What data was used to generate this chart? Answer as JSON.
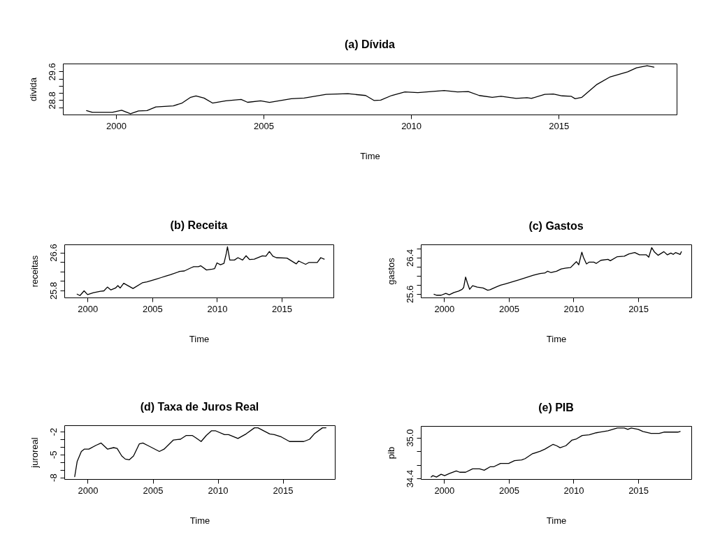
{
  "chart_data": [
    {
      "type": "line",
      "title": "(a) Dívida",
      "xlabel": "Time",
      "ylabel": "divida",
      "color": "#000000",
      "xlim": [
        1998.2,
        2019.0
      ],
      "xticks": [
        2000,
        2005,
        2010,
        2015
      ],
      "ylim": [
        28.4,
        29.82
      ],
      "yticks": [
        {
          "value": 28.6,
          "label": null
        },
        28.8,
        {
          "value": 29.0,
          "label": null
        },
        {
          "value": 29.2,
          "label": null
        },
        {
          "value": 29.4,
          "label": null
        },
        29.6
      ],
      "x": [
        1999.0,
        1999.2,
        1999.87,
        2000.19,
        2000.49,
        2000.76,
        2001.05,
        2001.35,
        2001.94,
        2002.24,
        2002.53,
        2002.71,
        2002.98,
        2003.27,
        2003.72,
        2004.24,
        2004.46,
        2004.9,
        2005.2,
        2005.94,
        2006.38,
        2007.12,
        2007.86,
        2008.46,
        2008.75,
        2008.97,
        2009.34,
        2009.79,
        2010.23,
        2010.53,
        2011.12,
        2011.57,
        2011.94,
        2012.31,
        2012.75,
        2013.05,
        2013.56,
        2013.93,
        2014.08,
        2014.53,
        2014.82,
        2015.12,
        2015.42,
        2015.56,
        2015.79,
        2016.3,
        2016.75,
        2017.34,
        2017.64,
        2018.0,
        2018.23
      ],
      "values": [
        28.51,
        28.46,
        28.46,
        28.52,
        28.42,
        28.5,
        28.51,
        28.61,
        28.64,
        28.72,
        28.88,
        28.92,
        28.86,
        28.72,
        28.78,
        28.82,
        28.74,
        28.78,
        28.74,
        28.84,
        28.86,
        28.96,
        28.98,
        28.93,
        28.79,
        28.8,
        28.93,
        29.03,
        29.01,
        29.03,
        29.07,
        29.03,
        29.04,
        28.93,
        28.88,
        28.91,
        28.85,
        28.87,
        28.85,
        28.96,
        28.97,
        28.92,
        28.91,
        28.84,
        28.88,
        29.24,
        29.45,
        29.59,
        29.7,
        29.76,
        29.72
      ]
    },
    {
      "type": "line",
      "title": "(b) Receita",
      "xlabel": "Time",
      "ylabel": "receitas",
      "color": "#000000",
      "xlim": [
        1998.2,
        2019.0
      ],
      "xticks": [
        2000,
        2005,
        2010,
        2015
      ],
      "ylim": [
        25.65,
        26.77
      ],
      "yticks": [
        25.8,
        {
          "value": 26.0,
          "label": null
        },
        {
          "value": 26.2,
          "label": null
        },
        {
          "value": 26.4,
          "label": null
        },
        26.6
      ],
      "x": [
        1999.19,
        1999.41,
        1999.73,
        2000.0,
        2000.45,
        2000.99,
        2001.26,
        2001.53,
        2001.8,
        2002.16,
        2002.34,
        2002.52,
        2002.79,
        2003.51,
        2004.23,
        2004.59,
        2005.32,
        2005.68,
        2006.04,
        2006.4,
        2007.12,
        2007.48,
        2008.02,
        2008.2,
        2008.56,
        2008.74,
        2009.19,
        2009.64,
        2009.82,
        2010.0,
        2010.27,
        2010.54,
        2010.72,
        2010.81,
        2010.99,
        2011.35,
        2011.62,
        2011.98,
        2012.25,
        2012.52,
        2012.88,
        2013.24,
        2013.51,
        2013.78,
        2014.05,
        2014.32,
        2014.59,
        2015.41,
        2016.13,
        2016.31,
        2016.85,
        2017.12,
        2017.75,
        2018.02,
        2018.29
      ],
      "values": [
        25.72,
        25.69,
        25.79,
        25.71,
        25.75,
        25.78,
        25.79,
        25.87,
        25.81,
        25.85,
        25.9,
        25.85,
        25.95,
        25.84,
        25.96,
        25.98,
        26.04,
        26.07,
        26.1,
        26.13,
        26.2,
        26.21,
        26.28,
        26.3,
        26.3,
        26.32,
        26.23,
        26.25,
        26.26,
        26.38,
        26.34,
        26.37,
        26.58,
        26.72,
        26.44,
        26.44,
        26.49,
        26.44,
        26.53,
        26.45,
        26.46,
        26.5,
        26.53,
        26.52,
        26.62,
        26.52,
        26.49,
        26.48,
        26.36,
        26.42,
        26.35,
        26.39,
        26.39,
        26.49,
        26.46
      ]
    },
    {
      "type": "line",
      "title": "(c) Gastos",
      "xlabel": "Time",
      "ylabel": "gastos",
      "color": "#000000",
      "xlim": [
        1998.2,
        2019.1
      ],
      "xticks": [
        2000,
        2005,
        2010,
        2015
      ],
      "ylim": [
        25.52,
        26.69
      ],
      "yticks": [
        25.6,
        {
          "value": 25.8,
          "label": null
        },
        {
          "value": 26.0,
          "label": null
        },
        {
          "value": 26.2,
          "label": null
        },
        26.4,
        {
          "value": 26.6,
          "label": null
        }
      ],
      "x": [
        1999.22,
        1999.41,
        1999.77,
        2000.13,
        2000.4,
        2000.76,
        2001.12,
        2001.39,
        2001.51,
        2001.66,
        2001.8,
        2001.97,
        2002.2,
        2002.56,
        2003.01,
        2003.37,
        2003.55,
        2004.0,
        2004.36,
        2004.72,
        2005.08,
        2005.44,
        2005.8,
        2006.35,
        2006.89,
        2007.43,
        2007.79,
        2008.0,
        2008.24,
        2008.69,
        2009.05,
        2009.41,
        2009.77,
        2010.04,
        2010.22,
        2010.4,
        2010.64,
        2010.76,
        2011.0,
        2011.21,
        2011.57,
        2011.75,
        2012.11,
        2012.66,
        2012.84,
        2013.38,
        2013.92,
        2014.28,
        2014.73,
        2015.09,
        2015.63,
        2015.81,
        2016.04,
        2016.26,
        2016.53,
        2016.98,
        2017.25,
        2017.52,
        2017.7,
        2017.88,
        2018.24,
        2018.33
      ],
      "values": [
        25.59,
        25.57,
        25.57,
        25.61,
        25.58,
        25.63,
        25.66,
        25.7,
        25.74,
        25.97,
        25.84,
        25.7,
        25.78,
        25.75,
        25.73,
        25.68,
        25.69,
        25.75,
        25.79,
        25.82,
        25.85,
        25.88,
        25.91,
        25.96,
        26.01,
        26.05,
        26.06,
        26.1,
        26.07,
        26.1,
        26.15,
        26.17,
        26.18,
        26.26,
        26.31,
        26.24,
        26.52,
        26.41,
        26.26,
        26.3,
        26.3,
        26.27,
        26.34,
        26.36,
        26.33,
        26.42,
        26.43,
        26.48,
        26.51,
        26.46,
        26.46,
        26.41,
        26.62,
        26.52,
        26.45,
        26.53,
        26.46,
        26.5,
        26.47,
        26.51,
        26.47,
        26.53
      ]
    },
    {
      "type": "line",
      "title": "(d) Taxa de Juros Real",
      "xlabel": "Time",
      "ylabel": "juroreal",
      "color": "#000000",
      "xlim": [
        1998.2,
        2019.0
      ],
      "xticks": [
        2000,
        2005,
        2010,
        2015
      ],
      "ylim": [
        -8.22,
        -1.17
      ],
      "yticks": [
        -8,
        {
          "value": -7,
          "label": null
        },
        {
          "value": -6,
          "label": null
        },
        -5,
        {
          "value": -4,
          "label": null
        },
        {
          "value": -3,
          "label": null
        },
        -2
      ],
      "x": [
        1999.0,
        1999.19,
        1999.51,
        1999.73,
        2000.09,
        2000.63,
        2001.03,
        2001.53,
        2001.99,
        2002.26,
        2002.62,
        2002.89,
        2003.19,
        2003.52,
        2003.97,
        2004.24,
        2004.6,
        2005.51,
        2005.87,
        2006.59,
        2007.13,
        2007.58,
        2008.03,
        2008.3,
        2008.72,
        2009.12,
        2009.51,
        2009.84,
        2010.52,
        2010.83,
        2011.55,
        2012.18,
        2012.82,
        2013.09,
        2013.99,
        2014.35,
        2014.89,
        2015.52,
        2016.61,
        2017.06,
        2017.42,
        2018.05,
        2018.32
      ],
      "values": [
        -7.9,
        -5.9,
        -4.6,
        -4.3,
        -4.3,
        -3.8,
        -3.5,
        -4.3,
        -4.1,
        -4.2,
        -5.2,
        -5.6,
        -5.7,
        -5.2,
        -3.6,
        -3.5,
        -3.8,
        -4.6,
        -4.3,
        -3.1,
        -3.0,
        -2.5,
        -2.5,
        -2.8,
        -3.3,
        -2.5,
        -1.9,
        -1.9,
        -2.4,
        -2.4,
        -2.9,
        -2.3,
        -1.5,
        -1.5,
        -2.3,
        -2.4,
        -2.7,
        -3.3,
        -3.3,
        -3.0,
        -2.3,
        -1.5,
        -1.5
      ]
    },
    {
      "type": "line",
      "title": "(e) PIB",
      "xlabel": "Time",
      "ylabel": "pib",
      "color": "#000000",
      "xlim": [
        1998.2,
        2019.1
      ],
      "xticks": [
        2000,
        2005,
        2010,
        2015
      ],
      "ylim": [
        34.39,
        35.17
      ],
      "yticks": [
        {
          "value": 34.4,
          "label": "34.4"
        },
        {
          "value": 34.6,
          "label": null
        },
        {
          "value": 34.8,
          "label": null
        },
        {
          "value": 35.0,
          "label": "35.0"
        }
      ],
      "x": [
        1999.0,
        1999.13,
        1999.41,
        1999.77,
        2000.04,
        2000.4,
        2000.94,
        2001.21,
        2001.66,
        2002.2,
        2002.74,
        2003.1,
        2003.55,
        2003.82,
        2004.36,
        2004.99,
        2005.44,
        2005.99,
        2006.26,
        2006.8,
        2007.43,
        2007.79,
        2008.42,
        2008.69,
        2008.96,
        2009.41,
        2009.86,
        2010.22,
        2010.67,
        2011.21,
        2011.75,
        2012.02,
        2012.66,
        2013.38,
        2013.92,
        2014.19,
        2014.46,
        2015.0,
        2015.36,
        2015.99,
        2016.62,
        2016.98,
        2018.06,
        2018.24
      ],
      "values": [
        34.42,
        34.44,
        34.42,
        34.46,
        34.44,
        34.47,
        34.51,
        34.49,
        34.49,
        34.54,
        34.54,
        34.52,
        34.57,
        34.57,
        34.62,
        34.62,
        34.66,
        34.67,
        34.69,
        34.76,
        34.8,
        34.83,
        34.9,
        34.88,
        34.85,
        34.88,
        34.96,
        34.98,
        35.03,
        35.04,
        35.07,
        35.08,
        35.1,
        35.14,
        35.14,
        35.12,
        35.14,
        35.12,
        35.09,
        35.06,
        35.06,
        35.08,
        35.08,
        35.09
      ]
    }
  ]
}
